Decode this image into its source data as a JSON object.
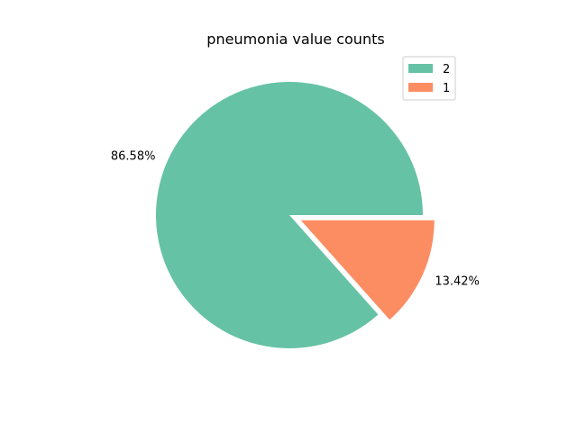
{
  "chart_data": {
    "type": "pie",
    "title": "pneumonia value counts",
    "slices": [
      {
        "label": "2",
        "percent": 86.58,
        "percent_label": "86.58%",
        "color": "#66c2a5",
        "exploded": false
      },
      {
        "label": "1",
        "percent": 13.42,
        "percent_label": "13.42%",
        "color": "#fc8d62",
        "exploded": true
      }
    ],
    "legend": {
      "placement": "top-right",
      "entries": [
        "2",
        "1"
      ]
    }
  }
}
